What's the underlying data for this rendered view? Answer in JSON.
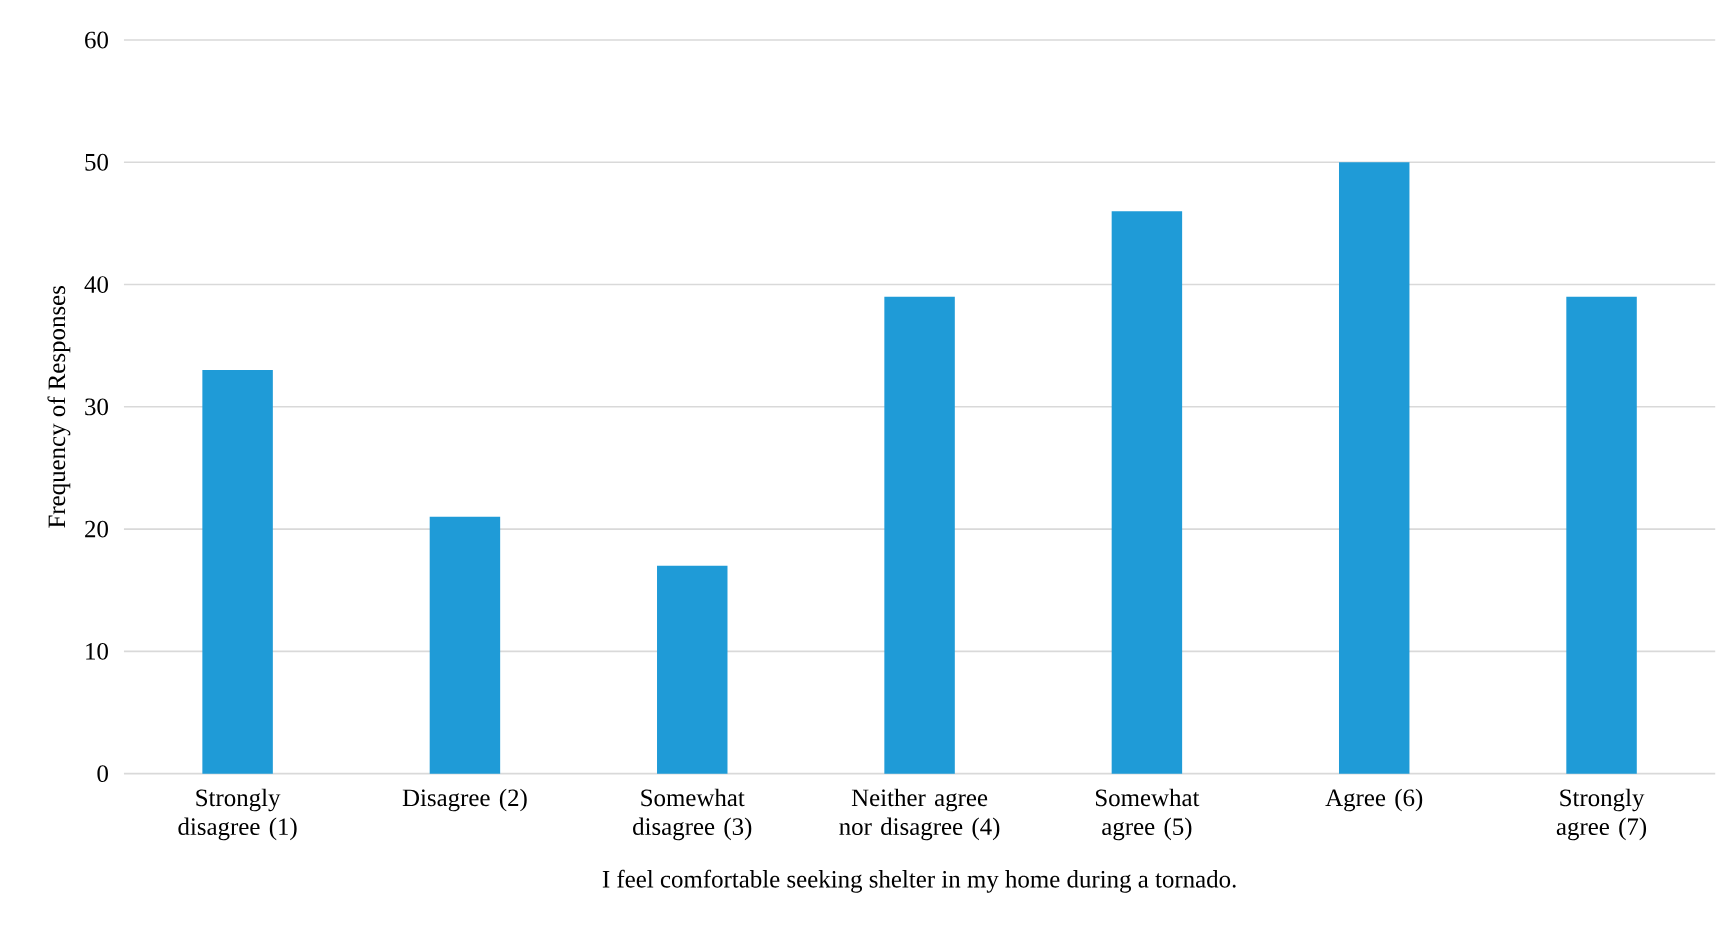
{
  "chart_data": {
    "type": "bar",
    "xlabel": "I feel comfortable seeking shelter in my home during a tornado.",
    "ylabel": "Frequency of Responses",
    "categories": [
      "Strongly disagree (1)",
      "Disagree (2)",
      "Somewhat disagree (3)",
      "Neither agree nor disagree (4)",
      "Somewhat agree (5)",
      "Agree (6)",
      "Strongly agree (7)"
    ],
    "values": [
      33,
      21,
      17,
      39,
      46,
      50,
      39
    ],
    "color": "#1f9bd7",
    "ylim": [
      0,
      60
    ],
    "yticks": [
      0,
      10,
      20,
      30,
      40,
      50,
      60
    ],
    "grid": "y"
  }
}
